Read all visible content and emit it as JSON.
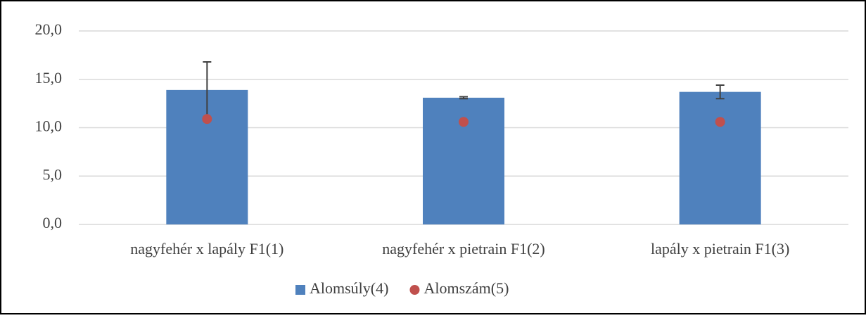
{
  "chart_data": {
    "type": "bar",
    "categories": [
      "nagyfehér x lapály F1(1)",
      "nagyfehér x pietrain F1(2)",
      "lapály x pietrain F1(3)"
    ],
    "series": [
      {
        "name": "Alomsúly(4)",
        "type": "bar",
        "color": "#4f81bd",
        "values": [
          13.9,
          13.1,
          13.7
        ],
        "errors": [
          2.9,
          0.1,
          0.7
        ]
      },
      {
        "name": "Alomszám(5)",
        "type": "scatter",
        "color": "#c0504d",
        "values": [
          10.9,
          10.6,
          10.6
        ]
      }
    ],
    "ylim": [
      0,
      20
    ],
    "yticks": [
      {
        "value": 0,
        "label": "0,0"
      },
      {
        "value": 5,
        "label": "5,0"
      },
      {
        "value": 10,
        "label": "10,0"
      },
      {
        "value": 15,
        "label": "15,0"
      },
      {
        "value": 20,
        "label": "20,0"
      }
    ],
    "grid": true,
    "legend": "bottom"
  }
}
